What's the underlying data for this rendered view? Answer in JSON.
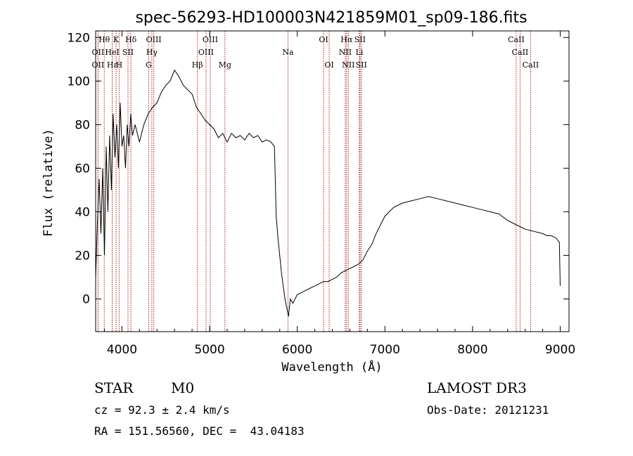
{
  "chart_data": {
    "type": "line",
    "title": "spec-56293-HD100003N421859M01_sp09-186.fits",
    "xlabel": "Wavelength (Å)",
    "ylabel": "Flux (relative)",
    "xlim": [
      3700,
      9100
    ],
    "ylim": [
      -15,
      123
    ],
    "xticks": [
      4000,
      5000,
      6000,
      7000,
      8000,
      9000
    ],
    "yticks": [
      0,
      20,
      40,
      60,
      80,
      100,
      120
    ],
    "grid": false,
    "line_color": "#000000",
    "marker_color": "#b22222",
    "series": [
      {
        "x": [
          3700,
          3720,
          3740,
          3760,
          3780,
          3800,
          3820,
          3840,
          3860,
          3880,
          3900,
          3920,
          3940,
          3960,
          3980,
          4000,
          4020,
          4040,
          4060,
          4080,
          4100,
          4120,
          4150,
          4200,
          4250,
          4300,
          4350,
          4400,
          4450,
          4500,
          4550,
          4600,
          4650,
          4700,
          4750,
          4800,
          4850,
          4900,
          4950,
          5000,
          5050,
          5100,
          5150,
          5200,
          5250,
          5300,
          5350,
          5400,
          5450,
          5500,
          5550,
          5600,
          5650,
          5700,
          5740,
          5760,
          5780,
          5800,
          5820,
          5840,
          5860,
          5880,
          5900,
          5920,
          5950,
          6000,
          6050,
          6100,
          6150,
          6200,
          6250,
          6300,
          6350,
          6400,
          6450,
          6500,
          6550,
          6600,
          6650,
          6700,
          6750,
          6800,
          6850,
          6900,
          6950,
          7000,
          7050,
          7100,
          7200,
          7300,
          7400,
          7500,
          7600,
          7700,
          7800,
          7900,
          8000,
          8100,
          8200,
          8300,
          8400,
          8500,
          8550,
          8600,
          8700,
          8800,
          8850,
          8900,
          8950,
          8990,
          9000
        ],
        "y": [
          10,
          35,
          55,
          30,
          60,
          20,
          70,
          40,
          75,
          50,
          85,
          65,
          80,
          60,
          90,
          70,
          75,
          60,
          80,
          70,
          85,
          75,
          80,
          72,
          80,
          85,
          88,
          90,
          95,
          98,
          100,
          105,
          102,
          98,
          96,
          94,
          88,
          85,
          82,
          80,
          78,
          74,
          76,
          72,
          76,
          74,
          75,
          73,
          76,
          74,
          75,
          72,
          73,
          72,
          70,
          38,
          28,
          20,
          12,
          6,
          0,
          -4,
          -8,
          0,
          -2,
          2,
          3,
          4,
          5,
          6,
          7,
          8,
          8,
          9,
          10,
          12,
          13,
          14,
          15,
          16,
          18,
          22,
          25,
          30,
          34,
          38,
          40,
          42,
          44,
          45,
          46,
          47,
          46,
          45,
          44,
          43,
          42,
          41,
          40,
          39,
          36,
          34,
          33,
          32,
          31,
          30,
          29,
          29,
          28,
          26,
          6
        ]
      }
    ],
    "lines": [
      {
        "name": "Hθ",
        "x": 3798,
        "row": 0
      },
      {
        "name": "OII",
        "x": 3727,
        "row": 1
      },
      {
        "name": "OII",
        "x": 3727,
        "row": 2
      },
      {
        "name": "K",
        "x": 3933,
        "row": 0
      },
      {
        "name": "H",
        "x": 3968,
        "row": 2
      },
      {
        "name": "Hε",
        "x": 3889,
        "row": 2
      },
      {
        "name": "HeI",
        "x": 3889,
        "row": 1
      },
      {
        "name": "SII",
        "x": 4069,
        "row": 1
      },
      {
        "name": "Hδ",
        "x": 4102,
        "row": 0
      },
      {
        "name": "OIII",
        "x": 4363,
        "row": 0
      },
      {
        "name": "Hγ",
        "x": 4341,
        "row": 1
      },
      {
        "name": "G",
        "x": 4305,
        "row": 2
      },
      {
        "name": "Hβ",
        "x": 4861,
        "row": 2
      },
      {
        "name": "OIII",
        "x": 4959,
        "row": 1
      },
      {
        "name": "OIII",
        "x": 5007,
        "row": 0
      },
      {
        "name": "Mg",
        "x": 5175,
        "row": 2
      },
      {
        "name": "Na",
        "x": 5894,
        "row": 1
      },
      {
        "name": "OI",
        "x": 6300,
        "row": 0
      },
      {
        "name": "OI",
        "x": 6364,
        "row": 2
      },
      {
        "name": "Hα",
        "x": 6563,
        "row": 0
      },
      {
        "name": "NII",
        "x": 6548,
        "row": 1
      },
      {
        "name": "NII",
        "x": 6583,
        "row": 2
      },
      {
        "name": "SII",
        "x": 6716,
        "row": 0
      },
      {
        "name": "Li",
        "x": 6708,
        "row": 1
      },
      {
        "name": "SII",
        "x": 6731,
        "row": 2
      },
      {
        "name": "CaII",
        "x": 8498,
        "row": 0
      },
      {
        "name": "CaII",
        "x": 8542,
        "row": 1
      },
      {
        "name": "CaII",
        "x": 8662,
        "row": 2
      }
    ]
  },
  "info": {
    "object_class": "STAR",
    "subclass": "M0",
    "survey": "LAMOST DR3",
    "cz": "cz = 92.3 ± 2.4 km/s",
    "obs_date": "Obs-Date: 20121231",
    "coords": "RA = 151.56560, DEC =  43.04183"
  }
}
